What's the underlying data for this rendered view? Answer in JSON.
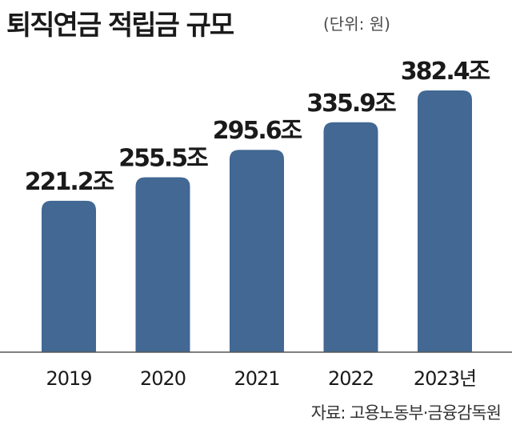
{
  "chart_data": {
    "type": "bar",
    "title": "퇴직연금 적립금 규모",
    "unit_note": "(단위: 원)",
    "categories": [
      "2019",
      "2020",
      "2021",
      "2022",
      "2023년"
    ],
    "values": [
      221.2,
      255.5,
      295.6,
      335.9,
      382.4
    ],
    "value_labels": [
      "221.2조",
      "255.5조",
      "295.6조",
      "335.9조",
      "382.4조"
    ],
    "ylim": [
      0,
      400
    ],
    "bar_color": "#426893",
    "grid": false,
    "legend": "none",
    "source": "자료: 고용노동부·금융감독원"
  }
}
